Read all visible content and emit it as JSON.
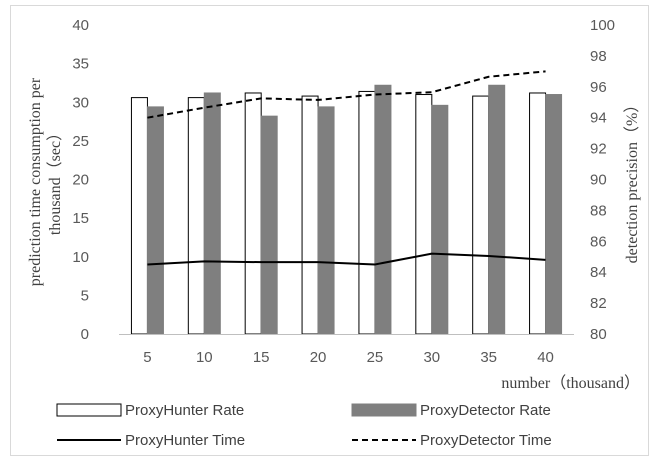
{
  "chart_data": {
    "type": "bar",
    "categories": [
      "5",
      "10",
      "15",
      "20",
      "25",
      "30",
      "35",
      "40"
    ],
    "xlabel": "number（thousand）",
    "ylabel_left": "prediction time consumption per thousand（sec）",
    "ylabel_left_lines": [
      "prediction time consumption per",
      "thousand（sec）"
    ],
    "ylabel_right": "detection precision（%）",
    "ylim_left": [
      0,
      40
    ],
    "yticks_left": [
      "0",
      "5",
      "10",
      "15",
      "20",
      "25",
      "30",
      "35",
      "40"
    ],
    "ylim_right": [
      80,
      100
    ],
    "yticks_right": [
      "80",
      "82",
      "84",
      "86",
      "88",
      "90",
      "92",
      "94",
      "96",
      "98",
      "100"
    ],
    "grid": false,
    "legend_position": "bottom",
    "series": [
      {
        "name": "ProxyHunter Rate",
        "kind": "bar",
        "axis": "right",
        "color": "#ffffff",
        "stroke": "#000000",
        "values": [
          95.3,
          95.3,
          95.6,
          95.4,
          95.7,
          95.5,
          95.4,
          95.6
        ]
      },
      {
        "name": "ProxyDetector Rate",
        "kind": "bar",
        "axis": "right",
        "color": "#7f7f7f",
        "stroke": "#7f7f7f",
        "values": [
          94.7,
          95.6,
          94.1,
          94.7,
          96.1,
          94.8,
          96.1,
          95.5
        ]
      },
      {
        "name": "ProxyHunter Time",
        "kind": "line",
        "axis": "left",
        "color": "#000000",
        "dash": "solid",
        "values": [
          9.0,
          9.4,
          9.3,
          9.3,
          9.0,
          10.4,
          10.1,
          9.6
        ]
      },
      {
        "name": "ProxyDetector Time",
        "kind": "line",
        "axis": "left",
        "color": "#000000",
        "dash": "dashed",
        "values": [
          28.0,
          29.3,
          30.5,
          30.3,
          31.0,
          31.3,
          33.3,
          34.0
        ]
      }
    ]
  }
}
